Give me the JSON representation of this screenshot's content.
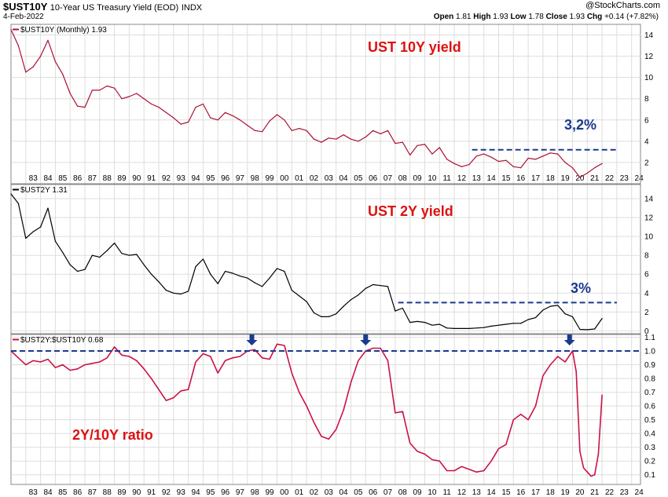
{
  "header": {
    "symbol": "$UST10Y",
    "description": "10-Year US Treasury Yield (EOD)",
    "exchange": "INDX",
    "date": "4-Feb-2022",
    "brand": "@StockCharts.com",
    "ohlc": {
      "open_label": "Open",
      "open": "1.81",
      "high_label": "High",
      "high": "1.93",
      "low_label": "Low",
      "low": "1.78",
      "close_label": "Close",
      "close": "1.93",
      "chg_label": "Chg",
      "chg": "+0.14 (+7.82%)"
    }
  },
  "x_axis": {
    "ticks": [
      "83",
      "84",
      "85",
      "86",
      "87",
      "88",
      "89",
      "90",
      "91",
      "92",
      "93",
      "94",
      "95",
      "96",
      "97",
      "98",
      "99",
      "00",
      "01",
      "02",
      "03",
      "04",
      "05",
      "06",
      "07",
      "08",
      "09",
      "10",
      "11",
      "12",
      "13",
      "14",
      "15",
      "16",
      "17",
      "18",
      "19",
      "20",
      "21",
      "22",
      "23",
      "24"
    ]
  },
  "colors": {
    "ust10y": "#aa1133",
    "ust2y": "#000000",
    "ratio": "#cc1144",
    "annotation_red": "#dd1111",
    "annotation_blue": "#1a3a8f",
    "grid": "#dddddd"
  },
  "chart_data": [
    {
      "type": "line",
      "legend": "$UST10Y (Monthly) 1.93",
      "annotation": "UST 10Y yield",
      "level_label": "3,2%",
      "level_value": 3.2,
      "yticks": [
        "2",
        "4",
        "6",
        "8",
        "10",
        "12",
        "14"
      ],
      "ylim": [
        0,
        15
      ],
      "x": [
        1982.0,
        1982.5,
        1983.0,
        1983.5,
        1984.0,
        1984.5,
        1985.0,
        1985.5,
        1986.0,
        1986.5,
        1987.0,
        1987.5,
        1988.0,
        1988.5,
        1989.0,
        1989.5,
        1990.0,
        1990.5,
        1991.0,
        1991.5,
        1992.0,
        1992.5,
        1993.0,
        1993.5,
        1994.0,
        1994.5,
        1995.0,
        1995.5,
        1996.0,
        1996.5,
        1997.0,
        1997.5,
        1998.0,
        1998.5,
        1999.0,
        1999.5,
        2000.0,
        2000.5,
        2001.0,
        2001.5,
        2002.0,
        2002.5,
        2003.0,
        2003.5,
        2004.0,
        2004.5,
        2005.0,
        2005.5,
        2006.0,
        2006.5,
        2007.0,
        2007.5,
        2008.0,
        2008.5,
        2009.0,
        2009.5,
        2010.0,
        2010.5,
        2011.0,
        2011.5,
        2012.0,
        2012.5,
        2013.0,
        2013.5,
        2014.0,
        2014.5,
        2015.0,
        2015.5,
        2016.0,
        2016.5,
        2017.0,
        2017.5,
        2018.0,
        2018.5,
        2019.0,
        2019.5,
        2020.0,
        2020.5,
        2021.0,
        2021.5,
        2022.0
      ],
      "values": [
        14.5,
        13.0,
        10.5,
        11.0,
        12.0,
        13.5,
        11.5,
        10.3,
        8.5,
        7.3,
        7.2,
        8.8,
        8.8,
        9.2,
        9.0,
        8.0,
        8.2,
        8.5,
        8.0,
        7.5,
        7.2,
        6.7,
        6.2,
        5.6,
        5.8,
        7.2,
        7.5,
        6.2,
        6.0,
        6.7,
        6.4,
        6.0,
        5.5,
        5.0,
        4.9,
        5.9,
        6.5,
        6.0,
        5.0,
        5.2,
        5.0,
        4.2,
        3.9,
        4.3,
        4.2,
        4.6,
        4.2,
        4.0,
        4.4,
        5.0,
        4.7,
        5.0,
        3.8,
        3.9,
        2.7,
        3.6,
        3.7,
        2.8,
        3.4,
        2.3,
        1.9,
        1.6,
        1.8,
        2.6,
        2.8,
        2.5,
        2.1,
        2.2,
        1.6,
        1.5,
        2.4,
        2.3,
        2.6,
        2.9,
        2.8,
        2.0,
        1.5,
        0.6,
        1.0,
        1.5,
        1.9
      ]
    },
    {
      "type": "line",
      "legend": "$UST2Y 1.31",
      "annotation": "UST 2Y yield",
      "level_label": "3%",
      "level_value": 3.0,
      "yticks": [
        "0",
        "2",
        "4",
        "6",
        "8",
        "10",
        "12",
        "14"
      ],
      "ylim": [
        -0.3,
        15.5
      ],
      "x": [
        1982.0,
        1982.5,
        1983.0,
        1983.5,
        1984.0,
        1984.5,
        1985.0,
        1985.5,
        1986.0,
        1986.5,
        1987.0,
        1987.5,
        1988.0,
        1988.5,
        1989.0,
        1989.5,
        1990.0,
        1990.5,
        1991.0,
        1991.5,
        1992.0,
        1992.5,
        1993.0,
        1993.5,
        1994.0,
        1994.5,
        1995.0,
        1995.5,
        1996.0,
        1996.5,
        1997.0,
        1997.5,
        1998.0,
        1998.5,
        1999.0,
        1999.5,
        2000.0,
        2000.5,
        2001.0,
        2001.5,
        2002.0,
        2002.5,
        2003.0,
        2003.5,
        2004.0,
        2004.5,
        2005.0,
        2005.5,
        2006.0,
        2006.5,
        2007.0,
        2007.5,
        2008.0,
        2008.5,
        2009.0,
        2009.5,
        2010.0,
        2010.5,
        2011.0,
        2011.5,
        2012.0,
        2012.5,
        2013.0,
        2013.5,
        2014.0,
        2014.5,
        2015.0,
        2015.5,
        2016.0,
        2016.5,
        2017.0,
        2017.5,
        2018.0,
        2018.5,
        2019.0,
        2019.5,
        2020.0,
        2020.5,
        2021.0,
        2021.5,
        2022.0
      ],
      "values": [
        14.5,
        13.5,
        9.8,
        10.5,
        11.0,
        13.0,
        9.5,
        8.3,
        7.0,
        6.3,
        6.5,
        8.0,
        7.8,
        8.5,
        9.3,
        8.2,
        8.0,
        8.1,
        7.0,
        6.0,
        5.2,
        4.3,
        4.0,
        3.9,
        4.2,
        6.8,
        7.6,
        6.0,
        5.0,
        6.3,
        6.1,
        5.8,
        5.6,
        5.1,
        4.7,
        5.6,
        6.6,
        6.3,
        4.3,
        3.7,
        3.1,
        1.9,
        1.5,
        1.5,
        1.8,
        2.6,
        3.3,
        3.8,
        4.5,
        4.9,
        4.8,
        4.7,
        2.1,
        2.4,
        0.9,
        1.0,
        0.9,
        0.6,
        0.7,
        0.3,
        0.25,
        0.25,
        0.25,
        0.3,
        0.35,
        0.5,
        0.6,
        0.7,
        0.8,
        0.8,
        1.2,
        1.4,
        2.2,
        2.6,
        2.7,
        1.8,
        1.5,
        0.16,
        0.12,
        0.2,
        1.31
      ]
    },
    {
      "type": "line",
      "legend": "$UST2Y:$UST10Y 0.68",
      "annotation": "2Y/10Y ratio",
      "reference_value": 1.0,
      "arrow_x": [
        1998.3,
        2006.0,
        2019.8
      ],
      "yticks": [
        "0.1",
        "0.2",
        "0.3",
        "0.4",
        "0.5",
        "0.6",
        "0.7",
        "0.8",
        "0.9",
        "1.0",
        "1.1"
      ],
      "ylim": [
        0.03,
        1.12
      ],
      "x": [
        1982.0,
        1982.5,
        1983.0,
        1983.5,
        1984.0,
        1984.5,
        1985.0,
        1985.5,
        1986.0,
        1986.5,
        1987.0,
        1987.5,
        1988.0,
        1988.5,
        1989.0,
        1989.5,
        1990.0,
        1990.5,
        1991.0,
        1991.5,
        1992.0,
        1992.5,
        1993.0,
        1993.5,
        1994.0,
        1994.5,
        1995.0,
        1995.5,
        1996.0,
        1996.5,
        1997.0,
        1997.5,
        1998.0,
        1998.5,
        1999.0,
        1999.5,
        2000.0,
        2000.5,
        2001.0,
        2001.5,
        2002.0,
        2002.5,
        2003.0,
        2003.5,
        2004.0,
        2004.5,
        2005.0,
        2005.5,
        2006.0,
        2006.5,
        2007.0,
        2007.5,
        2008.0,
        2008.5,
        2009.0,
        2009.5,
        2010.0,
        2010.5,
        2011.0,
        2011.5,
        2012.0,
        2012.5,
        2013.0,
        2013.5,
        2014.0,
        2014.5,
        2015.0,
        2015.5,
        2016.0,
        2016.5,
        2017.0,
        2017.5,
        2018.0,
        2018.5,
        2019.0,
        2019.5,
        2020.0,
        2020.25,
        2020.5,
        2020.75,
        2021.0,
        2021.25,
        2021.5,
        2021.75,
        2022.0
      ],
      "values": [
        1.0,
        0.95,
        0.9,
        0.93,
        0.92,
        0.94,
        0.88,
        0.9,
        0.86,
        0.87,
        0.9,
        0.91,
        0.92,
        0.95,
        1.03,
        0.97,
        0.96,
        0.93,
        0.87,
        0.8,
        0.72,
        0.64,
        0.66,
        0.71,
        0.72,
        0.92,
        0.98,
        0.96,
        0.84,
        0.93,
        0.95,
        0.96,
        1.0,
        1.01,
        0.95,
        0.94,
        1.05,
        1.04,
        0.84,
        0.7,
        0.6,
        0.48,
        0.38,
        0.36,
        0.43,
        0.57,
        0.77,
        0.93,
        1.0,
        1.02,
        1.02,
        0.93,
        0.55,
        0.56,
        0.33,
        0.27,
        0.25,
        0.21,
        0.2,
        0.13,
        0.13,
        0.16,
        0.14,
        0.12,
        0.13,
        0.2,
        0.29,
        0.32,
        0.5,
        0.54,
        0.5,
        0.6,
        0.82,
        0.9,
        0.96,
        0.92,
        1.0,
        0.85,
        0.27,
        0.15,
        0.12,
        0.09,
        0.1,
        0.25,
        0.68
      ]
    }
  ]
}
